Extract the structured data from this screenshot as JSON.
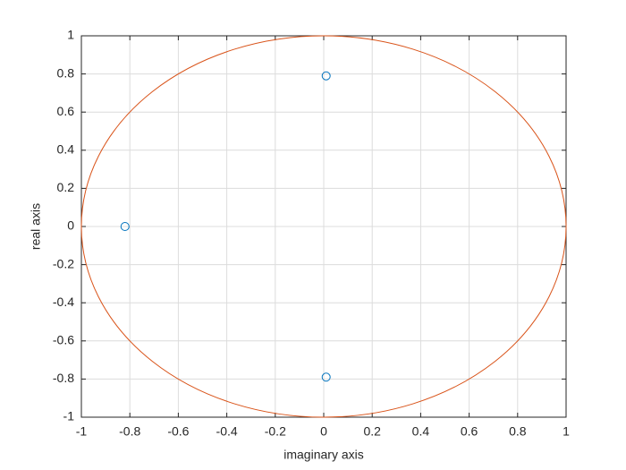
{
  "chart_data": {
    "type": "scatter",
    "x_label": "imaginary axis",
    "y_label": "real axis",
    "x": [
      0.01,
      -0.82,
      0.01
    ],
    "values": [
      0.79,
      0,
      -0.79
    ],
    "color": "#0072bd",
    "marker": "circle",
    "circle": {
      "center": [
        0,
        0
      ],
      "radius": 1,
      "color": "#d95319"
    },
    "xlim": [
      -1,
      1
    ],
    "ylim": [
      -1,
      1
    ],
    "xticks": [
      -1,
      -0.8,
      -0.6,
      -0.4,
      -0.2,
      0,
      0.2,
      0.4,
      0.6,
      0.8,
      1
    ],
    "yticks": [
      -1,
      -0.8,
      -0.6,
      -0.4,
      -0.2,
      0,
      0.2,
      0.4,
      0.6,
      0.8,
      1
    ],
    "grid": true
  }
}
